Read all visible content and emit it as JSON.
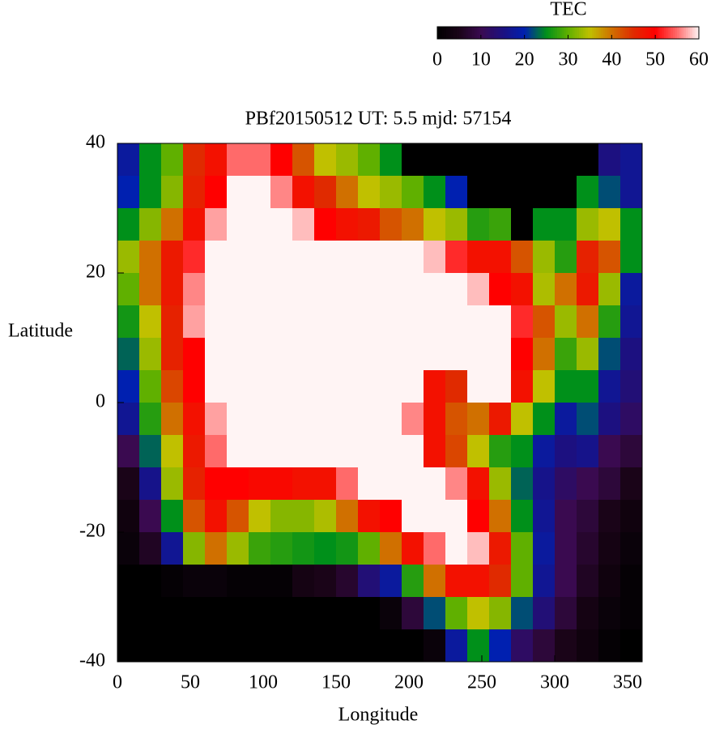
{
  "chart_data": {
    "type": "heatmap",
    "title": "PBf20150512  UT: 5.5  mjd: 57154",
    "x_label": "Longitude",
    "y_label": "Latitude",
    "colorbar_label": "TEC",
    "xbins": [
      0,
      15,
      30,
      45,
      60,
      75,
      90,
      105,
      120,
      135,
      150,
      165,
      180,
      195,
      210,
      225,
      240,
      255,
      270,
      285,
      300,
      315,
      330,
      345,
      360
    ],
    "ybins": [
      40,
      35,
      30,
      25,
      20,
      15,
      10,
      5,
      0,
      -5,
      -10,
      -15,
      -20,
      -25,
      -30,
      -35,
      -40
    ],
    "z": [
      [
        18,
        25,
        30,
        45,
        48,
        55,
        55,
        50,
        42,
        35,
        33,
        30,
        25,
        0,
        0,
        0,
        0,
        0,
        0,
        0,
        0,
        0,
        15,
        17
      ],
      [
        20,
        25,
        32,
        46,
        50,
        60,
        60,
        56,
        48,
        45,
        40,
        35,
        33,
        30,
        25,
        20,
        0,
        0,
        0,
        0,
        0,
        25,
        22,
        17
      ],
      [
        25,
        32,
        40,
        48,
        57,
        60,
        60,
        60,
        58,
        50,
        48,
        47,
        42,
        40,
        35,
        33,
        27,
        28,
        0,
        25,
        25,
        33,
        35,
        25
      ],
      [
        33,
        40,
        47,
        52,
        60,
        60,
        60,
        60,
        60,
        60,
        60,
        60,
        60,
        60,
        58,
        52,
        48,
        48,
        42,
        33,
        27,
        46,
        42,
        25
      ],
      [
        30,
        40,
        47,
        56,
        60,
        60,
        60,
        60,
        60,
        60,
        60,
        60,
        60,
        60,
        60,
        60,
        58,
        50,
        48,
        34,
        40,
        47,
        33,
        18
      ],
      [
        26,
        35,
        46,
        57,
        60,
        60,
        60,
        60,
        60,
        60,
        60,
        60,
        60,
        60,
        60,
        60,
        60,
        60,
        52,
        42,
        33,
        40,
        27,
        17
      ],
      [
        23,
        33,
        46,
        50,
        60,
        60,
        60,
        60,
        60,
        60,
        60,
        60,
        60,
        60,
        60,
        60,
        60,
        60,
        50,
        40,
        28,
        33,
        22,
        15
      ],
      [
        20,
        30,
        43,
        50,
        60,
        60,
        60,
        60,
        60,
        60,
        60,
        60,
        60,
        60,
        48,
        45,
        60,
        60,
        48,
        35,
        25,
        25,
        17,
        14
      ],
      [
        17,
        27,
        40,
        48,
        57,
        60,
        60,
        60,
        60,
        60,
        60,
        60,
        60,
        56,
        48,
        42,
        40,
        47,
        35,
        25,
        18,
        22,
        15,
        12
      ],
      [
        10,
        23,
        35,
        47,
        55,
        60,
        60,
        60,
        60,
        60,
        60,
        60,
        60,
        60,
        48,
        43,
        35,
        27,
        25,
        18,
        15,
        16,
        10,
        8
      ],
      [
        5,
        16,
        33,
        46,
        50,
        50,
        49,
        49,
        48,
        48,
        55,
        60,
        60,
        60,
        60,
        56,
        48,
        33,
        23,
        16,
        12,
        10,
        8,
        5
      ],
      [
        3,
        10,
        25,
        42,
        48,
        42,
        35,
        32,
        32,
        34,
        40,
        48,
        50,
        60,
        60,
        60,
        50,
        40,
        25,
        17,
        10,
        8,
        5,
        3
      ],
      [
        2,
        6,
        17,
        32,
        40,
        33,
        28,
        27,
        26,
        25,
        26,
        30,
        40,
        48,
        55,
        60,
        58,
        47,
        30,
        18,
        10,
        7,
        4,
        2
      ],
      [
        0,
        0,
        1,
        2,
        2,
        1,
        1,
        1,
        4,
        5,
        7,
        14,
        18,
        27,
        40,
        48,
        48,
        45,
        30,
        17,
        10,
        6,
        3,
        1
      ],
      [
        0,
        0,
        0,
        0,
        0,
        0,
        0,
        0,
        0,
        0,
        0,
        0,
        2,
        8,
        22,
        30,
        35,
        32,
        22,
        14,
        8,
        4,
        2,
        1
      ],
      [
        0,
        0,
        0,
        0,
        0,
        0,
        0,
        0,
        0,
        0,
        0,
        0,
        0,
        0,
        2,
        18,
        25,
        20,
        12,
        8,
        5,
        3,
        1,
        0
      ]
    ],
    "xlim": [
      0,
      360
    ],
    "xticks": [
      0,
      50,
      100,
      150,
      200,
      250,
      300,
      350
    ],
    "ylim": [
      -40,
      40
    ],
    "yticks": [
      -40,
      -20,
      0,
      20,
      40
    ],
    "zlim": [
      0,
      60
    ],
    "zticks": [
      0,
      10,
      20,
      30,
      40,
      50,
      60
    ],
    "colormap": [
      "#000000",
      "#1a0418",
      "#3a0a50",
      "#1c1080",
      "#0020b0",
      "#00901a",
      "#60b000",
      "#c0c000",
      "#d07000",
      "#e02a00",
      "#ff0000",
      "#ff6a6a",
      "#fff4f4"
    ]
  }
}
